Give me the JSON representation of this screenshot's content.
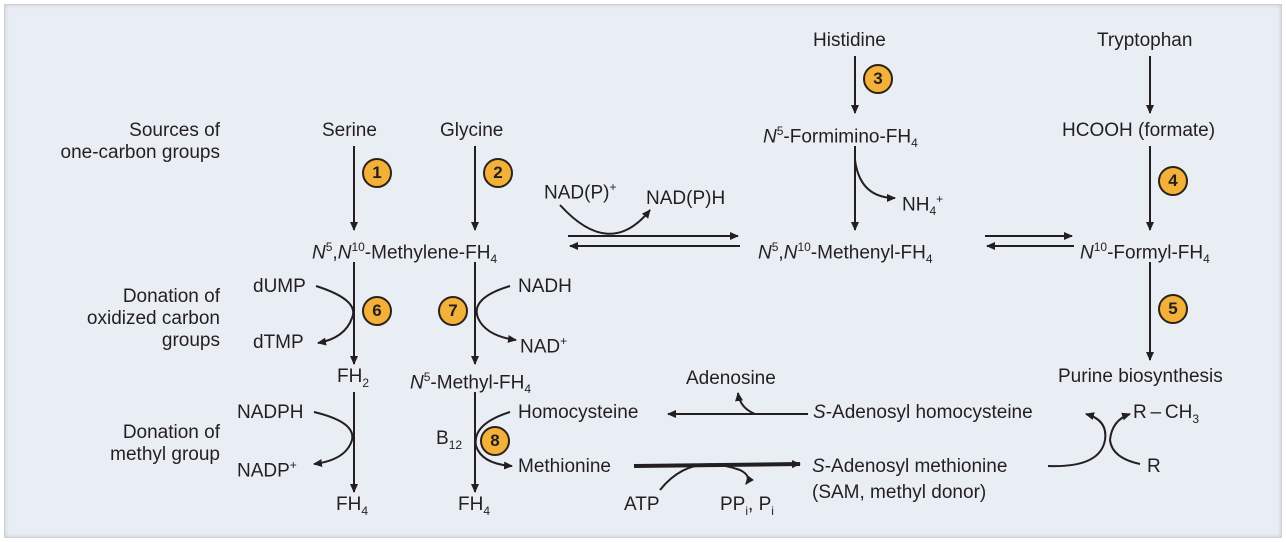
{
  "row_labels": {
    "sources_line1": "Sources of",
    "sources_line2": "one-carbon groups",
    "oxidized_line1": "Donation of",
    "oxidized_line2": "oxidized carbon",
    "oxidized_line3": "groups",
    "methyl_line1": "Donation of",
    "methyl_line2": "methyl group"
  },
  "sources": {
    "serine": "Serine",
    "glycine": "Glycine",
    "histidine": "Histidine",
    "tryptophan": "Tryptophan"
  },
  "intermediates": {
    "formimino_n": "N",
    "formimino_sup": "5",
    "formimino_rest": "-Formimino-FH",
    "formimino_sub": "4",
    "formate": "HCOOH (formate)",
    "methylene_n1": "N",
    "methylene_sup1": "5",
    "methylene_sep": ",",
    "methylene_n2": "N",
    "methylene_sup2": "10",
    "methylene_rest": "-Methylene-FH",
    "methylene_sub": "4",
    "methenyl_n1": "N",
    "methenyl_sup1": "5",
    "methenyl_sep": ",",
    "methenyl_n2": "N",
    "methenyl_sup2": "10",
    "methenyl_rest": "-Methenyl-FH",
    "methenyl_sub": "4",
    "formyl_n": "N",
    "formyl_sup": "10",
    "formyl_rest": "-Formyl-FH",
    "formyl_sub": "4",
    "fh2": "FH",
    "fh2_sub": "2",
    "methyl_n": "N",
    "methyl_sup": "5",
    "methyl_rest": "-Methyl-FH",
    "methyl_sub": "4",
    "fh4_left": "FH",
    "fh4_left_sub": "4",
    "fh4_mid": "FH",
    "fh4_mid_sub": "4",
    "purine": "Purine biosynthesis"
  },
  "cofactors": {
    "nadp_plus": "NAD(P)",
    "nadp_plus_sup": "+",
    "nadph_top": "NAD(P)H",
    "nh4": "NH",
    "nh4_sub": "4",
    "nh4_sup": "+",
    "dump": "dUMP",
    "dtmp": "dTMP",
    "nadh": "NADH",
    "nad_plus": "NAD",
    "nad_plus_sup": "+",
    "nadph": "NADPH",
    "nadp": "NADP",
    "nadp_sup": "+",
    "b12": "B",
    "b12_sub": "12",
    "homocysteine": "Homocysteine",
    "methionine": "Methionine",
    "atp": "ATP",
    "ppi": "PP",
    "ppi_sub": "i",
    "ppi_sep": ", P",
    "pi_sub": "i",
    "adenosine": "Adenosine",
    "sah_s": "S",
    "sah_rest": "-Adenosyl homocysteine",
    "sam_s": "S",
    "sam_rest": "-Adenosyl methionine",
    "sam_note": "(SAM, methyl donor)",
    "rch3": "R – CH",
    "rch3_sub": "3",
    "r": "R"
  },
  "badges": [
    "1",
    "2",
    "3",
    "4",
    "5",
    "6",
    "7",
    "8"
  ],
  "colors": {
    "background": "#e9edf4",
    "badge_fill": "#f3b13a",
    "arrow": "#231f20"
  }
}
